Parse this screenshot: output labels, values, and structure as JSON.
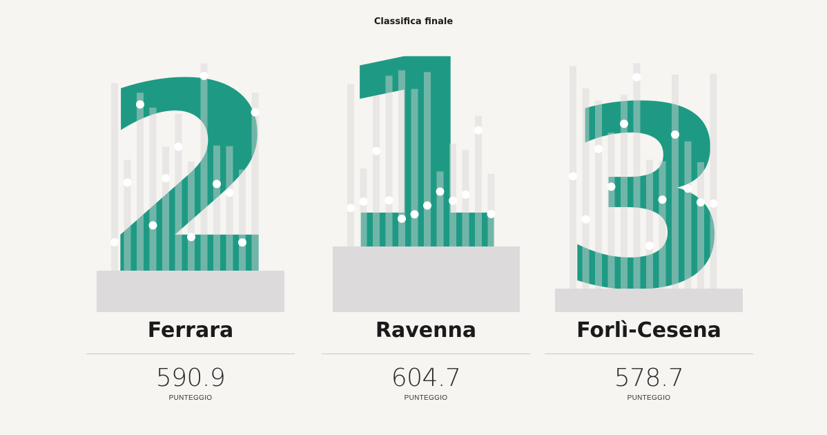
{
  "title": "Classifica finale",
  "colors": {
    "numeral": "#1e9a84",
    "pedestal": "#dcdadb",
    "stripe": "#d8d6d7",
    "dot": "#ffffff",
    "background": "#f6f5f1"
  },
  "chart_data": {
    "type": "bar",
    "title": "Classifica finale",
    "categories": [
      "Ferrara",
      "Ravenna",
      "Forlì-Cesena"
    ],
    "ranks": [
      2,
      1,
      3
    ],
    "values": [
      590.9,
      604.7,
      578.7
    ],
    "value_label": "PUNTEGGIO"
  },
  "podium": [
    {
      "rank": "2",
      "city": "Ferrara",
      "score": "590.9",
      "score_label": "PUNTEGGIO"
    },
    {
      "rank": "1",
      "city": "Ravenna",
      "score": "604.7",
      "score_label": "PUNTEGGIO"
    },
    {
      "rank": "3",
      "city": "Forlì-Cesena",
      "score": "578.7",
      "score_label": "PUNTEGGIO"
    }
  ]
}
